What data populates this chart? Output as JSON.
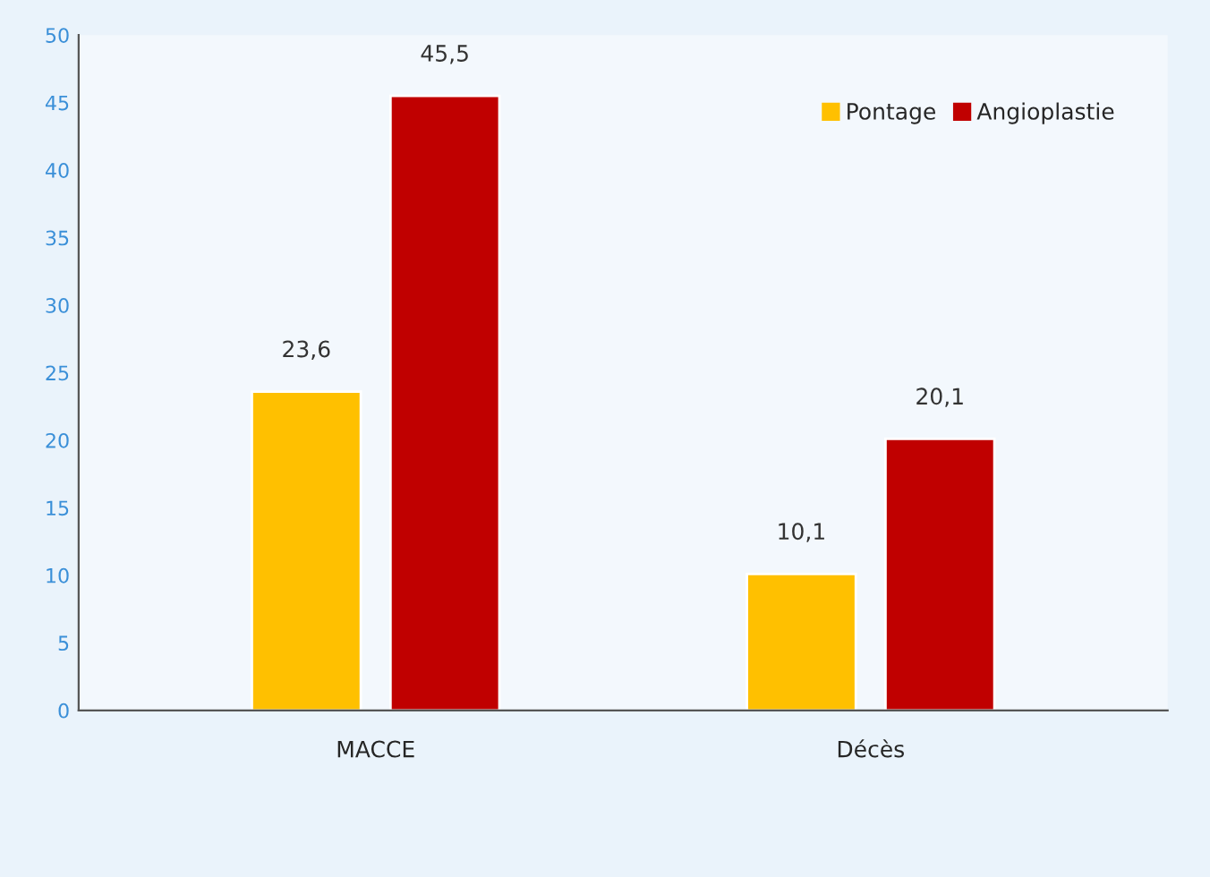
{
  "chart_data": {
    "type": "bar",
    "categories": [
      "MACCE",
      "Décès"
    ],
    "series": [
      {
        "name": "Pontage",
        "color": "#ffc000",
        "values": [
          23.6,
          10.1
        ],
        "value_labels": [
          "23,6",
          "10,1"
        ]
      },
      {
        "name": "Angioplastie",
        "color": "#c00000",
        "values": [
          45.5,
          20.1
        ],
        "value_labels": [
          "45,5",
          "20,1"
        ]
      }
    ],
    "ylim": [
      0,
      50
    ],
    "yticks": [
      0,
      5,
      10,
      15,
      20,
      25,
      30,
      35,
      40,
      45,
      50
    ],
    "grid": false,
    "legend": "top right"
  }
}
